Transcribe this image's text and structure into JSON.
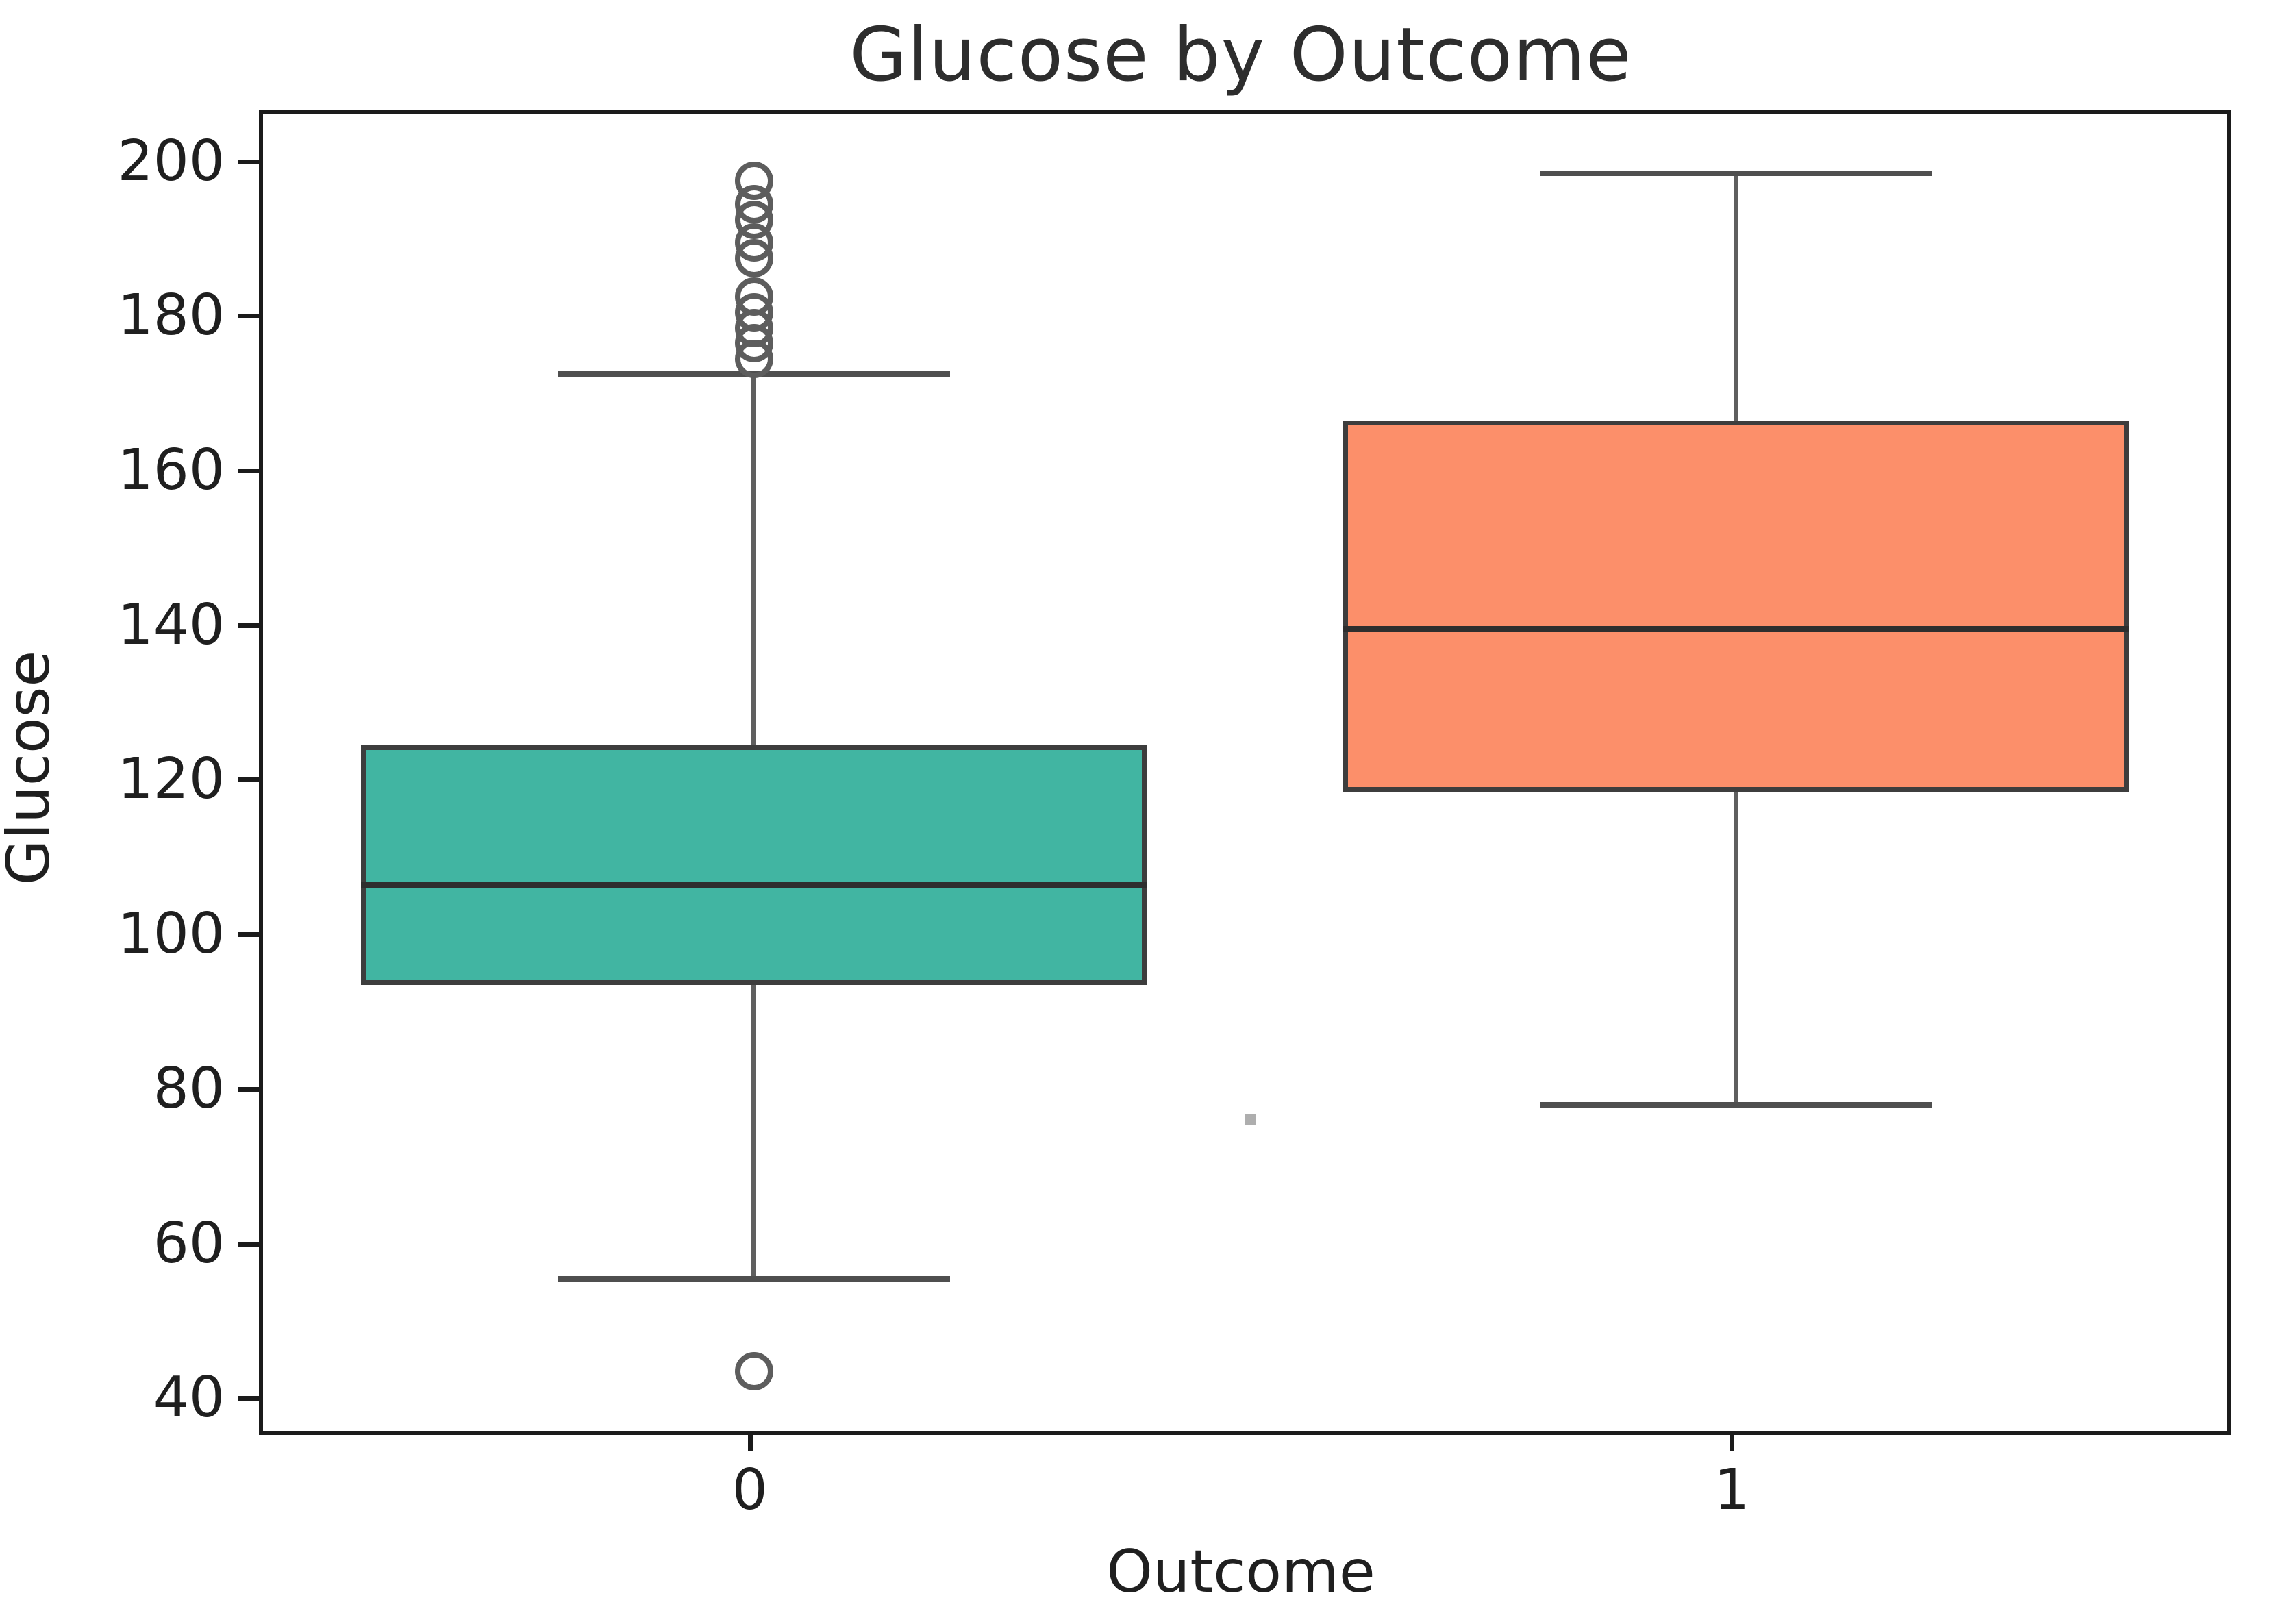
{
  "figure": {
    "background_color": "#ffffff"
  },
  "chart_data": {
    "type": "box",
    "title": "Glucose by Outcome",
    "xlabel": "Outcome",
    "ylabel": "Glucose",
    "categories": [
      "0",
      "1"
    ],
    "yticks": [
      40,
      60,
      80,
      100,
      120,
      140,
      160,
      180,
      200
    ],
    "ylim": [
      36.3,
      206.7
    ],
    "xlim": [
      -0.5,
      1.5
    ],
    "grid": false,
    "legend_position": "none",
    "box_width": 0.8,
    "cap_width": 0.4,
    "line_color": "#3d3d3d",
    "median_color": "#2e2e2e",
    "whisker_color": "#5f5f5f",
    "outlier_color": "#5d5d5d",
    "boxes": [
      {
        "category": "0",
        "x": 0,
        "fill_color": "#41b5a2",
        "whisker_low": 56,
        "q1": 94,
        "median": 107,
        "q3": 125,
        "whisker_high": 173,
        "outliers_below": [
          44
        ],
        "outliers_above": [
          175,
          177,
          179,
          181,
          183,
          188,
          190,
          193,
          195,
          198
        ]
      },
      {
        "category": "1",
        "x": 1,
        "fill_color": "#fc8f6a",
        "whisker_low": 78.5,
        "q1": 119,
        "median": 140,
        "q3": 167,
        "whisker_high": 199,
        "outliers_below": [],
        "outliers_above": []
      }
    ],
    "stray_mark": {
      "x": 0.51,
      "value": 76
    }
  }
}
